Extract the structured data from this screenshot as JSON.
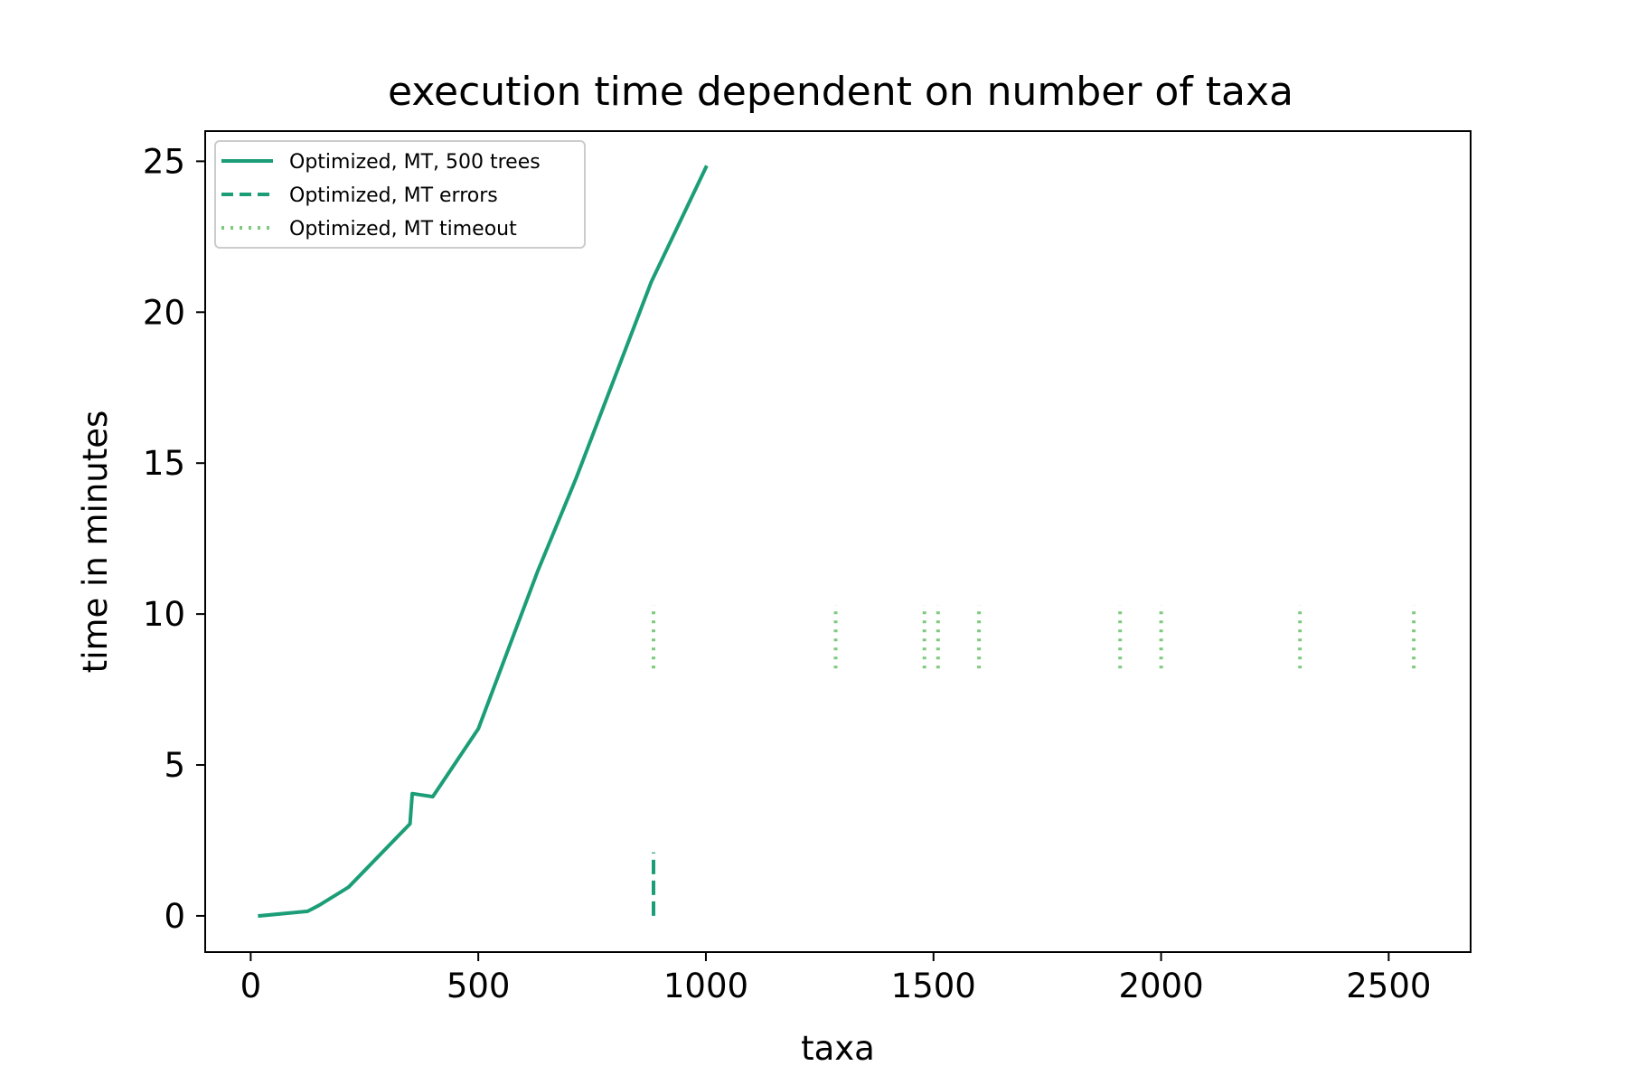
{
  "chart_data": {
    "type": "line",
    "title": "execution time dependent on number of taxa",
    "xlabel": "taxa",
    "ylabel": "time in minutes",
    "xlim": [
      -100,
      2680
    ],
    "ylim": [
      -1.2,
      26.0
    ],
    "xticks": [
      0,
      500,
      1000,
      1500,
      2000,
      2500
    ],
    "yticks": [
      0,
      5,
      10,
      15,
      20,
      25
    ],
    "grid": false,
    "legend": {
      "location": "upper left",
      "entries": [
        {
          "label": "Optimized, MT, 500 trees",
          "style": "solid"
        },
        {
          "label": "Optimized, MT errors",
          "style": "dashed"
        },
        {
          "label": "Optimized, MT timeout",
          "style": "dotted"
        }
      ]
    },
    "series": [
      {
        "name": "Optimized, MT, 500 trees",
        "style": "solid",
        "color": "#1b9e77",
        "x": [
          20,
          125,
          150,
          215,
          350,
          355,
          400,
          500,
          630,
          715,
          880,
          1000
        ],
        "y": [
          0.0,
          0.15,
          0.35,
          0.95,
          3.05,
          4.05,
          3.95,
          6.2,
          11.4,
          14.5,
          21.0,
          24.8
        ]
      },
      {
        "name": "Optimized, MT errors",
        "style": "dashed",
        "color": "#1b9e77",
        "segments": [
          {
            "x": 885,
            "y": [
              0.0,
              2.1
            ]
          }
        ]
      },
      {
        "name": "Optimized, MT timeout",
        "style": "dotted",
        "color": "#7fc97f",
        "segments": [
          {
            "x": 885,
            "y": [
              8.2,
              10.3
            ]
          },
          {
            "x": 1285,
            "y": [
              8.2,
              10.3
            ]
          },
          {
            "x": 1480,
            "y": [
              8.2,
              10.3
            ]
          },
          {
            "x": 1510,
            "y": [
              8.2,
              10.3
            ]
          },
          {
            "x": 1600,
            "y": [
              8.2,
              10.3
            ]
          },
          {
            "x": 1910,
            "y": [
              8.2,
              10.3
            ]
          },
          {
            "x": 2000,
            "y": [
              8.2,
              10.3
            ]
          },
          {
            "x": 2305,
            "y": [
              8.2,
              10.3
            ]
          },
          {
            "x": 2555,
            "y": [
              8.2,
              10.3
            ]
          }
        ]
      }
    ]
  }
}
